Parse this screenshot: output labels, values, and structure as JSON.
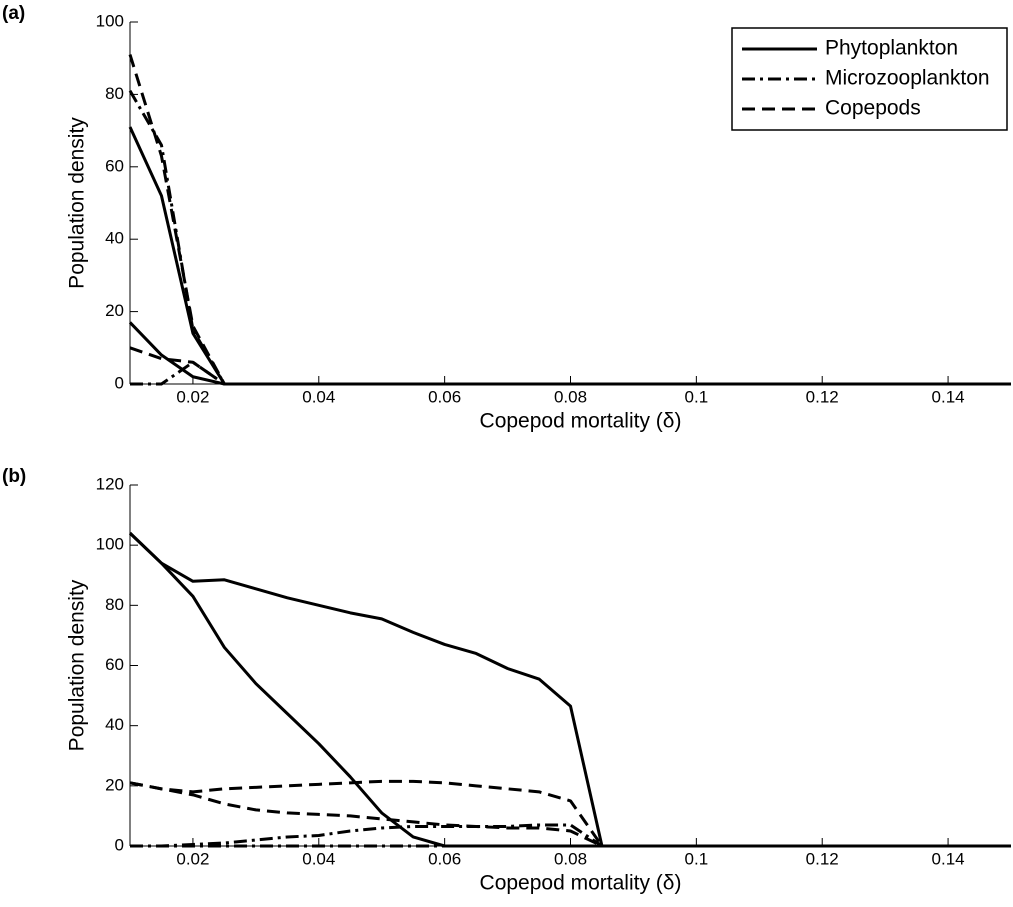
{
  "chart_data": [
    {
      "type": "line",
      "panel_label": "(a)",
      "x_label": "Copepod mortality (δ)",
      "y_label": "Population density",
      "x": [
        0.01,
        0.015,
        0.02,
        0.025,
        0.03,
        0.035,
        0.04,
        0.045,
        0.05,
        0.055,
        0.06,
        0.065,
        0.07,
        0.075,
        0.08,
        0.085,
        0.09,
        0.095,
        0.1,
        0.105,
        0.11,
        0.115,
        0.12,
        0.125,
        0.13,
        0.135,
        0.14,
        0.145,
        0.15
      ],
      "xlim": [
        0.01,
        0.15
      ],
      "xticks": [
        0.02,
        0.04,
        0.06,
        0.08,
        0.1,
        0.12,
        0.14
      ],
      "ylim": [
        0,
        100
      ],
      "yticks": [
        0,
        20,
        40,
        60,
        80,
        100
      ],
      "legend": "upper right",
      "series": [
        {
          "name": "Phytoplankton",
          "color": "#000000",
          "line_style": "solid",
          "values": [
            71,
            52,
            14,
            0,
            0,
            0,
            0,
            0,
            0,
            0,
            0,
            0,
            0,
            0,
            0,
            0,
            0,
            0,
            0,
            0,
            0,
            0,
            0,
            0,
            0,
            0,
            0,
            0,
            0
          ]
        },
        {
          "name": "Phytoplankton",
          "color": "#000000",
          "line_style": "solid",
          "values": [
            17,
            8,
            2,
            0,
            0,
            0,
            0,
            0,
            0,
            0,
            0,
            0,
            0,
            0,
            0,
            0,
            0,
            0,
            0,
            0,
            0,
            0,
            0,
            0,
            0,
            0,
            0,
            0,
            0
          ]
        },
        {
          "name": "Microzooplankton",
          "color": "#000000",
          "line_style": "dashdot",
          "values": [
            81,
            66,
            15,
            0,
            0,
            0,
            0,
            0,
            0,
            0,
            0,
            0,
            0,
            0,
            0,
            0,
            0,
            0,
            0,
            0,
            0,
            0,
            0,
            0,
            0,
            0,
            0,
            0,
            0
          ]
        },
        {
          "name": "Microzooplankton",
          "color": "#000000",
          "line_style": "dashdot",
          "values": [
            0,
            0,
            6,
            0,
            0,
            0,
            0,
            0,
            0,
            0,
            0,
            0,
            0,
            0,
            0,
            0,
            0,
            0,
            0,
            0,
            0,
            0,
            0,
            0,
            0,
            0,
            0,
            0,
            0
          ]
        },
        {
          "name": "Copepods",
          "color": "#000000",
          "line_style": "dashed",
          "values": [
            91,
            63,
            16,
            0,
            0,
            0,
            0,
            0,
            0,
            0,
            0,
            0,
            0,
            0,
            0,
            0,
            0,
            0,
            0,
            0,
            0,
            0,
            0,
            0,
            0,
            0,
            0,
            0,
            0
          ]
        },
        {
          "name": "Copepods",
          "color": "#000000",
          "line_style": "dashed",
          "values": [
            10,
            7,
            6,
            0,
            0,
            0,
            0,
            0,
            0,
            0,
            0,
            0,
            0,
            0,
            0,
            0,
            0,
            0,
            0,
            0,
            0,
            0,
            0,
            0,
            0,
            0,
            0,
            0,
            0
          ]
        }
      ]
    },
    {
      "type": "line",
      "panel_label": "(b)",
      "x_label": "Copepod mortality (δ)",
      "y_label": "Population density",
      "x": [
        0.01,
        0.015,
        0.02,
        0.025,
        0.03,
        0.035,
        0.04,
        0.045,
        0.05,
        0.055,
        0.06,
        0.065,
        0.07,
        0.075,
        0.08,
        0.085,
        0.09,
        0.095,
        0.1,
        0.105,
        0.11,
        0.115,
        0.12,
        0.125,
        0.13,
        0.135,
        0.14,
        0.145,
        0.15
      ],
      "xlim": [
        0.01,
        0.15
      ],
      "xticks": [
        0.02,
        0.04,
        0.06,
        0.08,
        0.1,
        0.12,
        0.14
      ],
      "ylim": [
        0,
        120
      ],
      "yticks": [
        0,
        20,
        40,
        60,
        80,
        100,
        120
      ],
      "series": [
        {
          "name": "Phytoplankton",
          "color": "#000000",
          "line_style": "solid",
          "values": [
            104,
            94,
            88,
            88.5,
            85.5,
            82.5,
            80,
            77.5,
            75.5,
            71,
            67,
            64,
            59,
            55.5,
            46.5,
            0,
            0,
            0,
            0,
            0,
            0,
            0,
            0,
            0,
            0,
            0,
            0,
            0,
            0
          ]
        },
        {
          "name": "Phytoplankton",
          "color": "#000000",
          "line_style": "solid",
          "values": [
            104,
            94,
            83,
            66,
            54,
            44,
            34,
            23,
            11,
            3,
            0,
            0,
            0,
            0,
            0,
            0,
            0,
            0,
            0,
            0,
            0,
            0,
            0,
            0,
            0,
            0,
            0,
            0,
            0
          ]
        },
        {
          "name": "Microzooplankton",
          "color": "#000000",
          "line_style": "dashdot",
          "values": [
            0,
            0,
            0.5,
            1,
            2,
            3,
            3.5,
            5,
            6,
            6.5,
            6.5,
            6.5,
            6.5,
            7,
            7,
            0,
            0,
            0,
            0,
            0,
            0,
            0,
            0,
            0,
            0,
            0,
            0,
            0,
            0
          ]
        },
        {
          "name": "Microzooplankton",
          "color": "#000000",
          "line_style": "dashdot",
          "values": [
            0,
            0,
            0,
            0,
            0,
            0,
            0,
            0,
            0,
            0,
            0,
            0,
            0,
            0,
            0,
            0,
            0,
            0,
            0,
            0,
            0,
            0,
            0,
            0,
            0,
            0,
            0,
            0,
            0
          ]
        },
        {
          "name": "Copepods",
          "color": "#000000",
          "line_style": "dashed",
          "values": [
            21,
            19,
            18,
            19,
            19.5,
            20,
            20.5,
            21,
            21.5,
            21.5,
            21,
            20,
            19,
            18,
            15,
            0,
            0,
            0,
            0,
            0,
            0,
            0,
            0,
            0,
            0,
            0,
            0,
            0,
            0
          ]
        },
        {
          "name": "Copepods",
          "color": "#000000",
          "line_style": "dashed",
          "values": [
            21,
            19,
            17,
            14,
            12,
            11,
            10.5,
            10,
            9,
            8,
            7,
            6.5,
            6,
            6,
            5,
            0,
            0,
            0,
            0,
            0,
            0,
            0,
            0,
            0,
            0,
            0,
            0,
            0,
            0
          ]
        }
      ]
    }
  ]
}
